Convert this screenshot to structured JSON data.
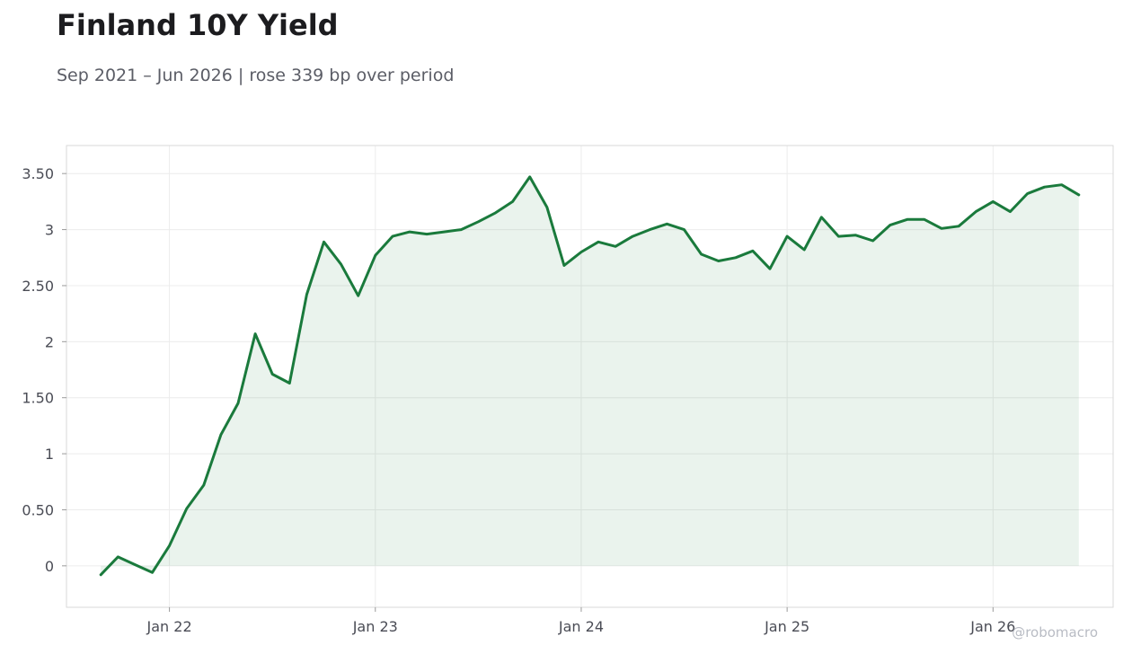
{
  "title": "Finland 10Y Yield",
  "subtitle": "Sep 2021 – Jun 2026 | rose 339 bp over period",
  "watermark": "@robomacro",
  "colors": {
    "line": "#1a7a3c",
    "fill": "#1a7a3c",
    "grid": "#ececec",
    "frame": "#d9d9d9"
  },
  "chart_data": {
    "type": "area",
    "title": "Finland 10Y Yield",
    "xlabel": "",
    "ylabel": "",
    "grid": true,
    "x_ticks": [
      "Jan 22",
      "Jan 23",
      "Jan 24",
      "Jan 25",
      "Jan 26"
    ],
    "y_ticks": [
      "0",
      "0.50",
      "1",
      "1.50",
      "2",
      "2.50",
      "3",
      "3.50"
    ],
    "ylim": [
      -0.37,
      3.75
    ],
    "xlim": [
      "2021-07",
      "2026-08"
    ],
    "series": [
      {
        "x": [
          "2021-09",
          "2021-10",
          "2021-11",
          "2021-12",
          "2022-01",
          "2022-02",
          "2022-03",
          "2022-04",
          "2022-05",
          "2022-06",
          "2022-07",
          "2022-08",
          "2022-09",
          "2022-10",
          "2022-11",
          "2022-12",
          "2023-01",
          "2023-02",
          "2023-03",
          "2023-04",
          "2023-05",
          "2023-06",
          "2023-07",
          "2023-08",
          "2023-09",
          "2023-10",
          "2023-11",
          "2023-12",
          "2024-01",
          "2024-02",
          "2024-03",
          "2024-04",
          "2024-05",
          "2024-06",
          "2024-07",
          "2024-08",
          "2024-09",
          "2024-10",
          "2024-11",
          "2024-12",
          "2025-01",
          "2025-02",
          "2025-03",
          "2025-04",
          "2025-05",
          "2025-06",
          "2025-07",
          "2025-08",
          "2025-09",
          "2025-10",
          "2025-11",
          "2025-12",
          "2026-01",
          "2026-02",
          "2026-03",
          "2026-04",
          "2026-05",
          "2026-06"
        ],
        "values": [
          -0.08,
          0.08,
          0.01,
          -0.06,
          0.18,
          0.51,
          0.72,
          1.17,
          1.45,
          2.07,
          1.71,
          1.63,
          2.42,
          2.89,
          2.69,
          2.41,
          2.77,
          2.94,
          2.98,
          2.96,
          2.98,
          3.0,
          3.07,
          3.15,
          3.25,
          3.47,
          3.2,
          2.68,
          2.8,
          2.89,
          2.85,
          2.94,
          3.0,
          3.05,
          3.0,
          2.78,
          2.72,
          2.75,
          2.81,
          2.65,
          2.94,
          2.82,
          3.11,
          2.94,
          2.95,
          2.9,
          3.04,
          3.09,
          3.09,
          3.01,
          3.03,
          3.16,
          3.25,
          3.16,
          3.32,
          3.38,
          3.4,
          3.31
        ]
      }
    ]
  }
}
